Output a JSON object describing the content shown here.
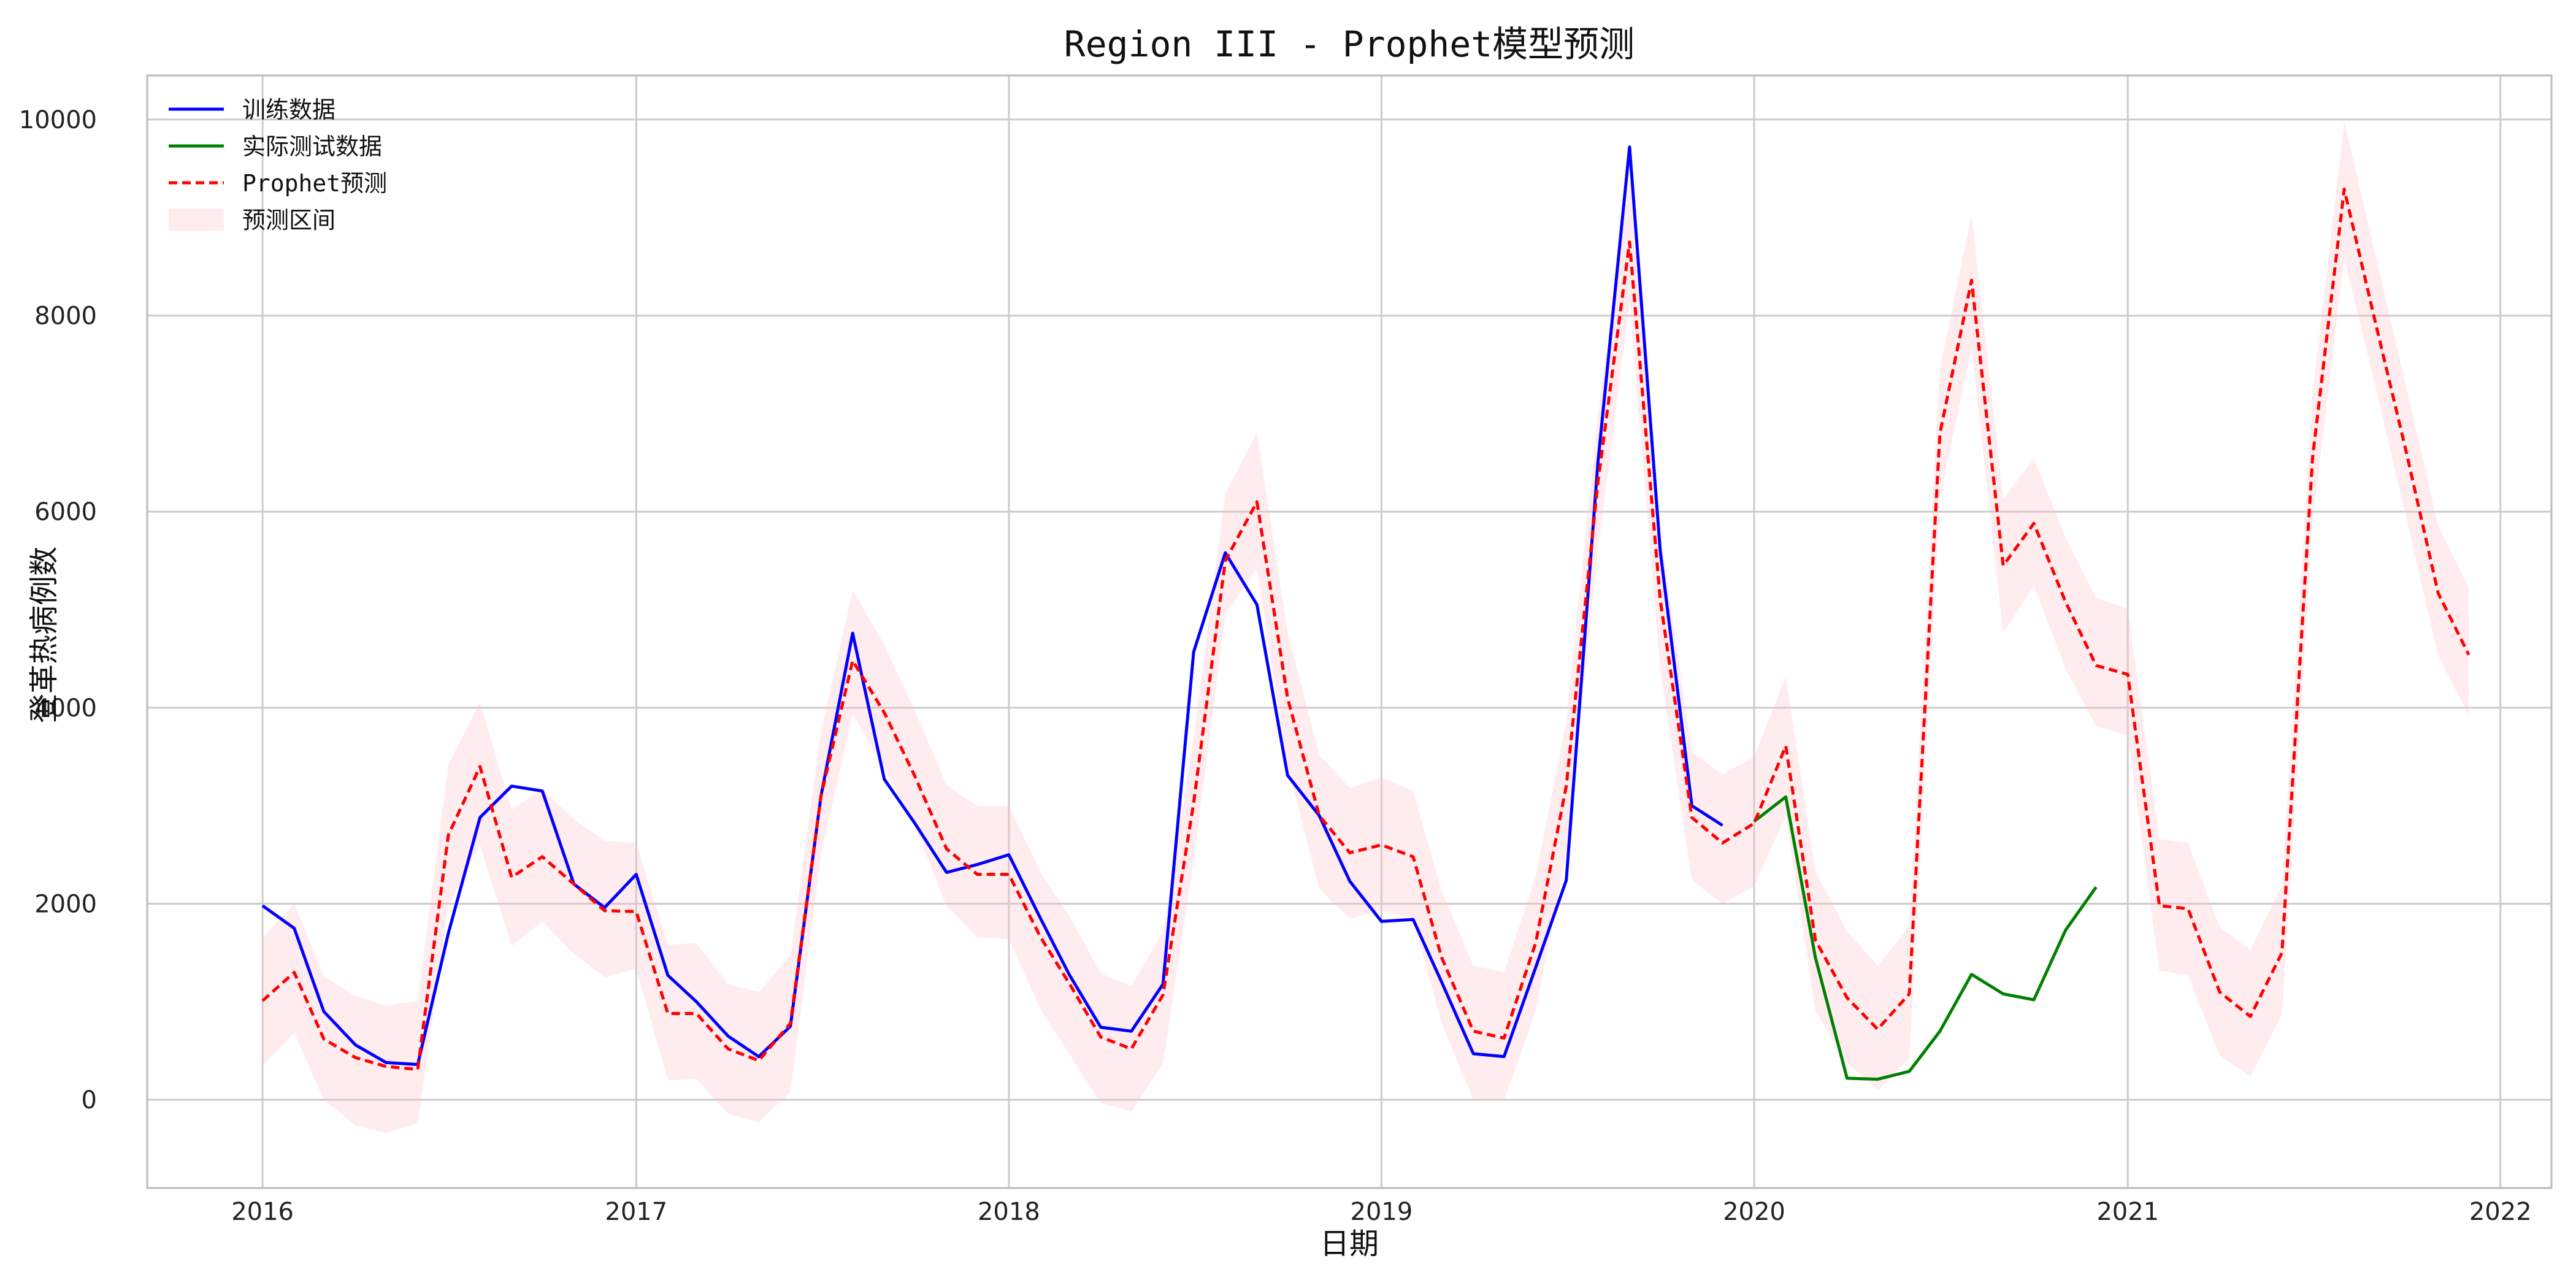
{
  "chart_data": {
    "type": "line",
    "title": "Region III - Prophet模型预测",
    "xlabel": "日期",
    "ylabel": "登革热病例数",
    "xlim": [
      "2015-09-10",
      "2022-02-20"
    ],
    "ylim": [
      -900,
      10450
    ],
    "x_ticks": [
      "2016",
      "2017",
      "2018",
      "2019",
      "2020",
      "2021",
      "2022"
    ],
    "x_tick_dates": [
      "2016-01-01",
      "2017-01-01",
      "2018-01-01",
      "2019-01-01",
      "2020-01-01",
      "2021-01-01",
      "2022-01-01"
    ],
    "y_ticks": [
      0,
      2000,
      4000,
      6000,
      8000,
      10000
    ],
    "grid": true,
    "legend_position": "top-left",
    "legend": [
      "训练数据",
      "实际测试数据",
      "Prophet预测",
      "预测区间"
    ],
    "colors": {
      "train": "#0000ff",
      "test": "#008000",
      "forecast": "#ff0000",
      "interval": "#ffc0cb",
      "grid": "#cccccc",
      "frame": "#bbbbbb"
    },
    "series": [
      {
        "name": "训练数据",
        "dates": [
          "2016-01",
          "2016-02",
          "2016-03",
          "2016-04",
          "2016-05",
          "2016-06",
          "2016-07",
          "2016-08",
          "2016-09",
          "2016-10",
          "2016-11",
          "2016-12",
          "2017-01",
          "2017-02",
          "2017-03",
          "2017-04",
          "2017-05",
          "2017-06",
          "2017-07",
          "2017-08",
          "2017-09",
          "2017-10",
          "2017-11",
          "2017-12",
          "2018-01",
          "2018-02",
          "2018-03",
          "2018-04",
          "2018-05",
          "2018-06",
          "2018-07",
          "2018-08",
          "2018-09",
          "2018-10",
          "2018-11",
          "2018-12",
          "2019-01",
          "2019-02",
          "2019-03",
          "2019-04",
          "2019-05",
          "2019-06",
          "2019-07",
          "2019-08",
          "2019-09",
          "2019-10",
          "2019-11",
          "2019-12"
        ],
        "values": [
          1980,
          1750,
          900,
          560,
          380,
          360,
          1700,
          2880,
          3200,
          3150,
          2200,
          1960,
          2300,
          1270,
          1000,
          650,
          440,
          750,
          3100,
          4760,
          3270,
          2820,
          2320,
          2400,
          2500,
          1850,
          1280,
          740,
          700,
          1180,
          4570,
          5580,
          5050,
          3310,
          2900,
          2230,
          1820,
          1840,
          1200,
          470,
          440,
          1350,
          2240,
          6500,
          9720,
          5600,
          3000,
          2800
        ]
      },
      {
        "name": "实际测试数据",
        "dates": [
          "2020-01",
          "2020-02",
          "2020-03",
          "2020-04",
          "2020-05",
          "2020-06",
          "2020-07",
          "2020-08",
          "2020-09",
          "2020-10",
          "2020-11",
          "2020-12"
        ],
        "values": [
          2840,
          3090,
          1450,
          220,
          210,
          290,
          700,
          1280,
          1080,
          1020,
          1730,
          2170
        ]
      },
      {
        "name": "Prophet预测",
        "dates": [
          "2016-01",
          "2016-02",
          "2016-03",
          "2016-04",
          "2016-05",
          "2016-06",
          "2016-07",
          "2016-08",
          "2016-09",
          "2016-10",
          "2016-11",
          "2016-12",
          "2017-01",
          "2017-02",
          "2017-03",
          "2017-04",
          "2017-05",
          "2017-06",
          "2017-07",
          "2017-08",
          "2017-09",
          "2017-10",
          "2017-11",
          "2017-12",
          "2018-01",
          "2018-02",
          "2018-03",
          "2018-04",
          "2018-05",
          "2018-06",
          "2018-07",
          "2018-08",
          "2018-09",
          "2018-10",
          "2018-11",
          "2018-12",
          "2019-01",
          "2019-02",
          "2019-03",
          "2019-04",
          "2019-05",
          "2019-06",
          "2019-07",
          "2019-08",
          "2019-09",
          "2019-10",
          "2019-11",
          "2019-12",
          "2020-01",
          "2020-02",
          "2020-03",
          "2020-04",
          "2020-05",
          "2020-06",
          "2020-07",
          "2020-08",
          "2020-09",
          "2020-10",
          "2020-11",
          "2020-12",
          "2021-01",
          "2021-02",
          "2021-03",
          "2021-04",
          "2021-05",
          "2021-06",
          "2021-07",
          "2021-08",
          "2021-09",
          "2021-10",
          "2021-11",
          "2021-12"
        ],
        "values": [
          1010,
          1300,
          620,
          430,
          340,
          310,
          2700,
          3400,
          2270,
          2480,
          2200,
          1930,
          1920,
          880,
          880,
          520,
          400,
          780,
          3100,
          4480,
          3950,
          3300,
          2560,
          2300,
          2300,
          1660,
          1190,
          640,
          520,
          1070,
          3030,
          5500,
          6100,
          4100,
          2900,
          2520,
          2600,
          2480,
          1450,
          700,
          630,
          1600,
          3200,
          6300,
          8750,
          5100,
          2880,
          2620,
          2820,
          3610,
          1630,
          1040,
          720,
          1080,
          6800,
          8360,
          5450,
          5880,
          5080,
          4430,
          4340,
          1980,
          1950,
          1100,
          850,
          1500,
          6550,
          9290,
          7910,
          6600,
          5170,
          4540
        ],
        "lower": [
          350,
          680,
          0,
          -260,
          -340,
          -240,
          1980,
          2600,
          1570,
          1820,
          1490,
          1250,
          1340,
          200,
          210,
          -140,
          -230,
          80,
          2500,
          3940,
          3380,
          2790,
          1980,
          1660,
          1640,
          920,
          470,
          -30,
          -120,
          370,
          2440,
          4950,
          5420,
          3400,
          2150,
          1850,
          1930,
          1850,
          780,
          0,
          0,
          900,
          2530,
          5600,
          8140,
          4400,
          2240,
          2000,
          2180,
          2900,
          900,
          380,
          100,
          420,
          6140,
          7670,
          4760,
          5240,
          4400,
          3810,
          3720,
          1320,
          1270,
          450,
          240,
          870,
          5900,
          8590,
          7260,
          5930,
          4530,
          3920
        ],
        "upper": [
          1650,
          2000,
          1260,
          1060,
          960,
          1010,
          3420,
          4060,
          2960,
          3170,
          2860,
          2640,
          2620,
          1580,
          1600,
          1180,
          1100,
          1470,
          3760,
          5200,
          4640,
          3970,
          3210,
          3000,
          3000,
          2320,
          1880,
          1290,
          1160,
          1720,
          3700,
          6190,
          6800,
          4770,
          3520,
          3180,
          3290,
          3150,
          2130,
          1370,
          1300,
          2280,
          3860,
          6980,
          9380,
          5780,
          3550,
          3320,
          3500,
          4320,
          2330,
          1720,
          1370,
          1770,
          7460,
          9030,
          6120,
          6550,
          5730,
          5120,
          5010,
          2660,
          2620,
          1760,
          1530,
          2180,
          7210,
          9980,
          8600,
          7260,
          5860,
          5220
        ]
      }
    ]
  }
}
